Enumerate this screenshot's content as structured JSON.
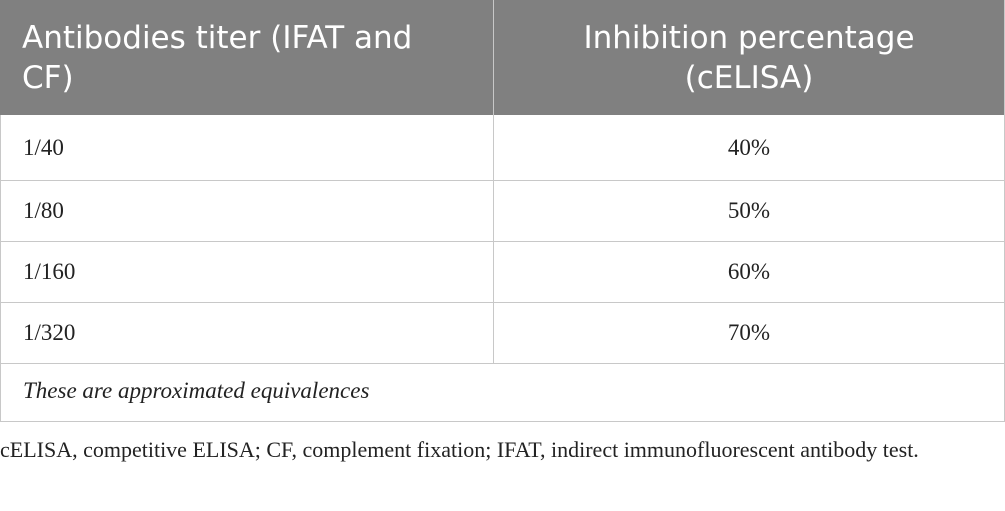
{
  "table": {
    "header": [
      "Antibodies titer (IFAT and CF)",
      "Inhibition percentage (cELISA)"
    ],
    "rows": [
      [
        "1/40",
        "40%"
      ],
      [
        "1/80",
        "50%"
      ],
      [
        "1/160",
        "60%"
      ],
      [
        "1/320",
        "70%"
      ]
    ],
    "note": "These are approximated equivalences"
  },
  "caption": "cELISA, competitive ELISA; CF, complement fixation; IFAT, indirect immunofluorescent antibody test."
}
